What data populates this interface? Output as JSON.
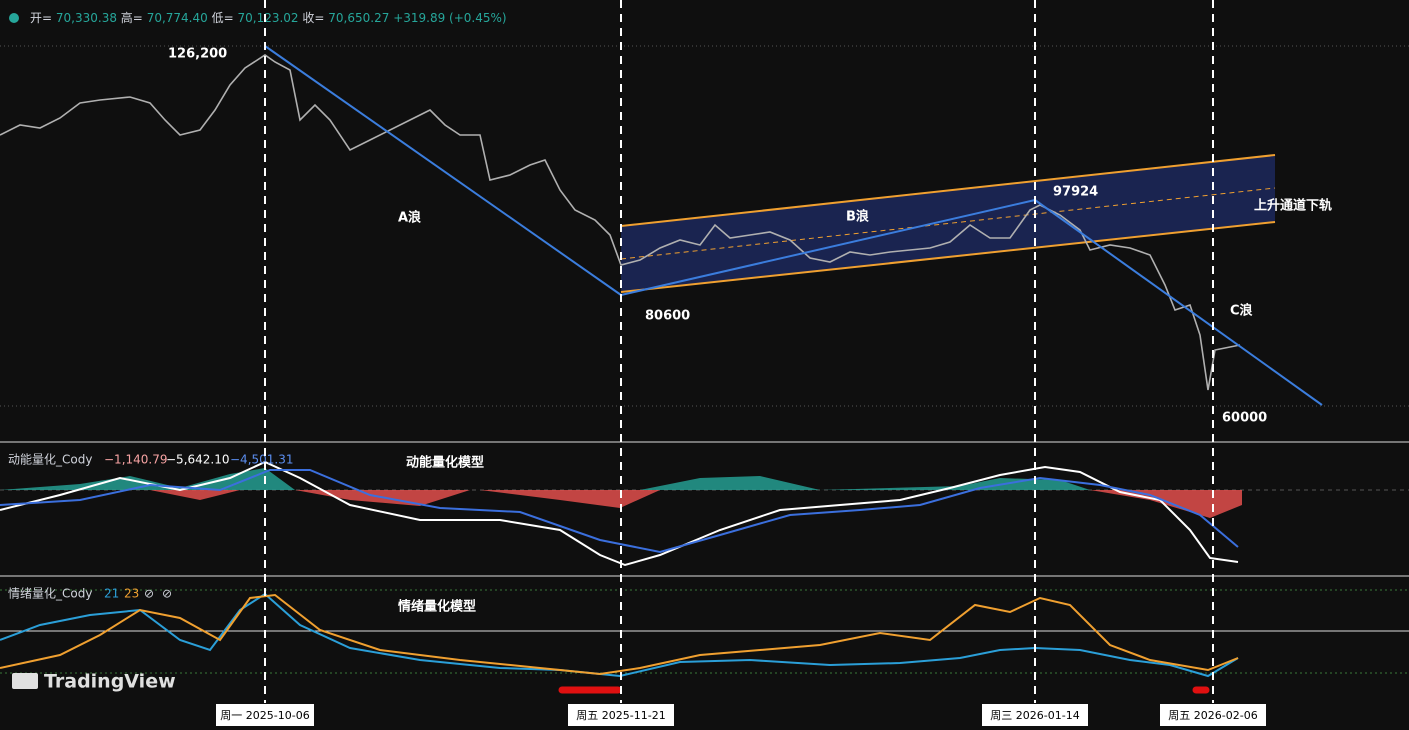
{
  "header": {
    "items": [
      {
        "key": "开=",
        "value": "70,330.38"
      },
      {
        "key": "高=",
        "value": "70,774.40"
      },
      {
        "key": "低=",
        "value": "70,123.02"
      },
      {
        "key": "收=",
        "value": "70,650.27"
      }
    ],
    "change": "+319.89 (+0.45%)"
  },
  "annotations": {
    "peak": "126,200",
    "wave_a": "A浪",
    "wave_b": "B浪",
    "b_high": "97924",
    "channel": "上升通道下轨",
    "b_low": "80600",
    "wave_c": "C浪",
    "c_low": "60000"
  },
  "momentum": {
    "name": "动能量化_Cody",
    "values": [
      "−1,140.79",
      "−5,642.10",
      "−4,501.31"
    ],
    "title": "动能量化模型"
  },
  "sentiment": {
    "name": "情绪量化_Cody",
    "values": [
      "21",
      "23",
      "⊘",
      "⊘"
    ],
    "title": "情绪量化模型"
  },
  "logo": "TradingView",
  "dates": [
    "周一 2025-10-06",
    "周五 2025-11-21",
    "周三 2026-01-14",
    "周五 2026-02-06"
  ]
}
